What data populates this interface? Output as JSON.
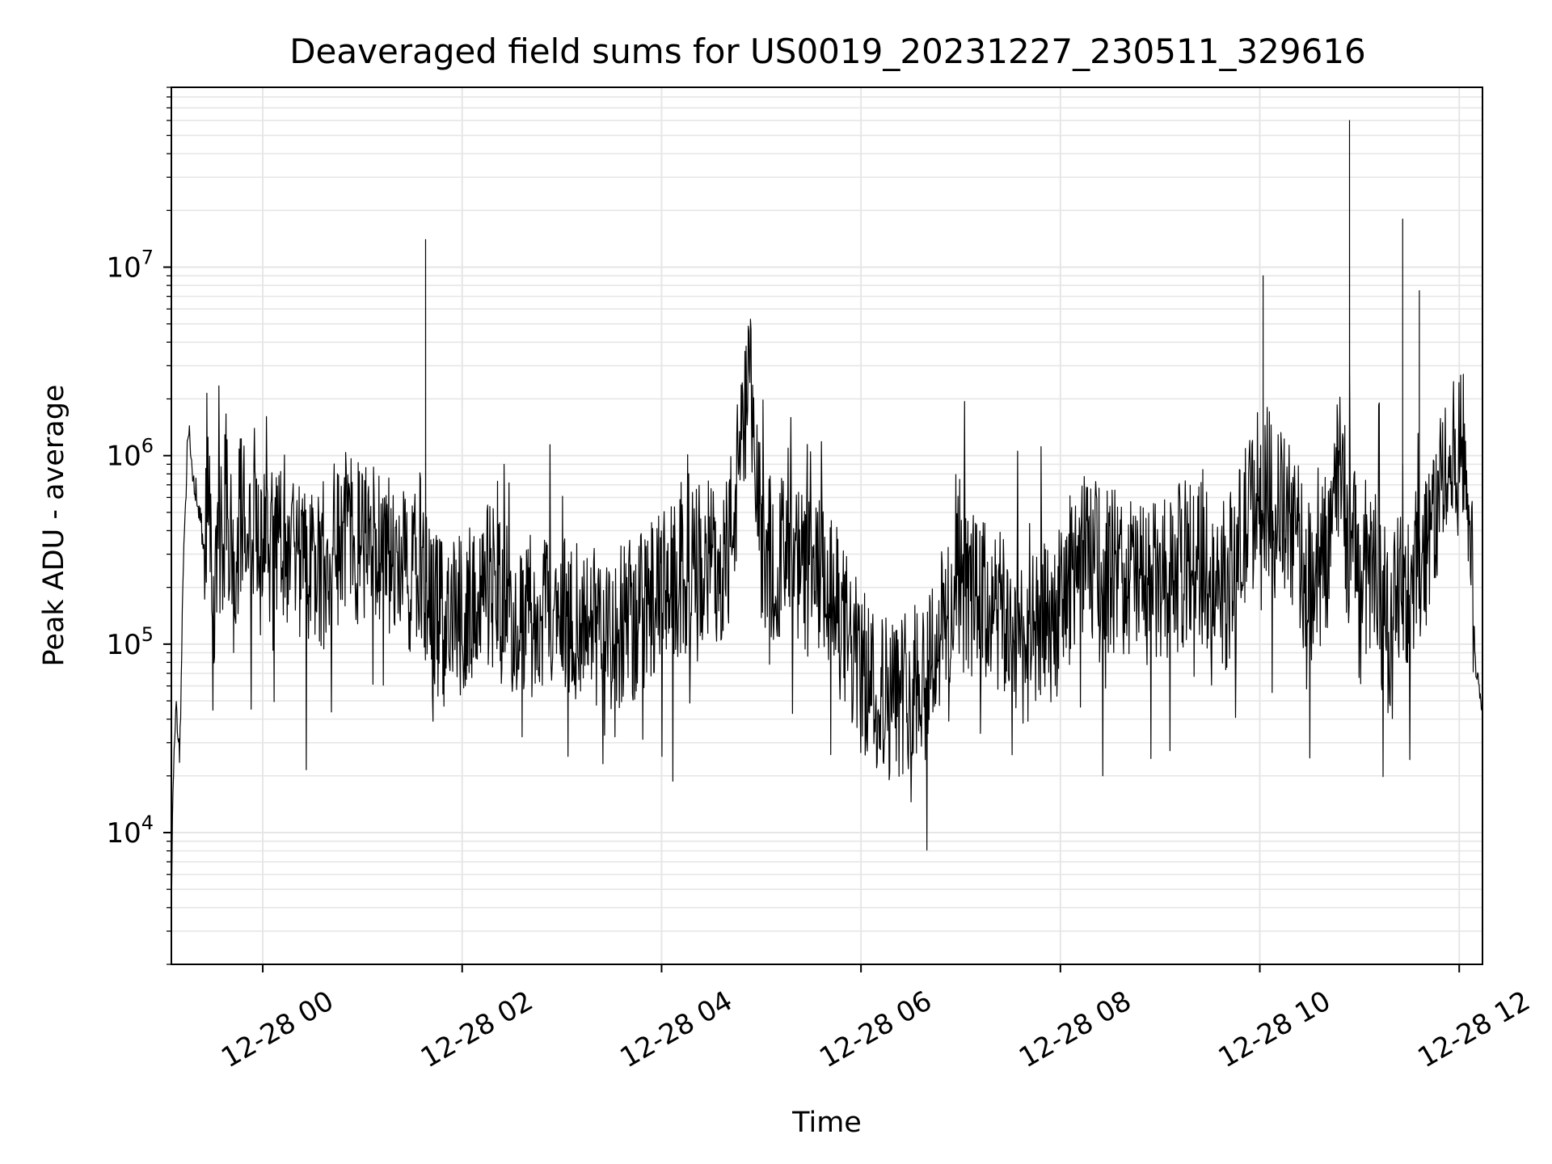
{
  "chart_data": {
    "type": "line",
    "title": "Deaveraged field sums for US0019_20231227_230511_329616",
    "xlabel": "Time",
    "ylabel": "Peak ADU - average",
    "yscale": "log",
    "grid": true,
    "xlim": [
      "2023-12-27 23:05",
      "2023-12-28 12:14"
    ],
    "ylim": [
      2000,
      90000000
    ],
    "x_ticks": [
      "12-28 00",
      "12-28 02",
      "12-28 04",
      "12-28 06",
      "12-28 08",
      "12-28 10",
      "12-28 12"
    ],
    "y_ticks": [
      {
        "base": "10",
        "exp": "4",
        "value": 10000
      },
      {
        "base": "10",
        "exp": "5",
        "value": 100000
      },
      {
        "base": "10",
        "exp": "6",
        "value": 1000000
      },
      {
        "base": "10",
        "exp": "7",
        "value": 10000000
      }
    ],
    "series": [
      {
        "color": "#000000",
        "x": [
          "2023-12-27 23:05",
          "2023-12-27 23:06",
          "2023-12-27 23:08",
          "2023-12-27 23:10",
          "2023-12-27 23:12",
          "2023-12-27 23:15",
          "2023-12-27 23:18",
          "2023-12-27 23:22",
          "2023-12-27 23:25",
          "2023-12-27 23:28",
          "2023-12-27 23:30",
          "2023-12-27 23:33",
          "2023-12-27 23:36",
          "2023-12-27 23:38",
          "2023-12-27 23:42",
          "2023-12-27 23:46",
          "2023-12-27 23:50",
          "2023-12-27 23:52",
          "2023-12-27 23:55",
          "2023-12-27 23:58",
          "2023-12-28 00:00",
          "2023-12-28 00:10",
          "2023-12-28 00:20",
          "2023-12-28 00:30",
          "2023-12-28 00:40",
          "2023-12-28 00:52",
          "2023-12-28 01:00",
          "2023-12-28 01:10",
          "2023-12-28 01:20",
          "2023-12-28 01:30",
          "2023-12-28 01:35",
          "2023-12-28 01:38",
          "2023-12-28 01:40",
          "2023-12-28 01:50",
          "2023-12-28 02:00",
          "2023-12-28 02:15",
          "2023-12-28 02:30",
          "2023-12-28 02:45",
          "2023-12-28 03:00",
          "2023-12-28 03:20",
          "2023-12-28 03:40",
          "2023-12-28 04:00",
          "2023-12-28 04:20",
          "2023-12-28 04:40",
          "2023-12-28 04:53",
          "2023-12-28 05:00",
          "2023-12-28 05:20",
          "2023-12-28 05:40",
          "2023-12-28 06:00",
          "2023-12-28 06:20",
          "2023-12-28 06:40",
          "2023-12-28 07:00",
          "2023-12-28 07:20",
          "2023-12-28 07:40",
          "2023-12-28 08:00",
          "2023-12-28 08:10",
          "2023-12-28 08:30",
          "2023-12-28 09:00",
          "2023-12-28 09:20",
          "2023-12-28 09:40",
          "2023-12-28 10:00",
          "2023-12-28 10:02",
          "2023-12-28 10:20",
          "2023-12-28 10:30",
          "2023-12-28 10:40",
          "2023-12-28 10:50",
          "2023-12-28 10:54",
          "2023-12-28 11:00",
          "2023-12-28 11:10",
          "2023-12-28 11:15",
          "2023-12-28 11:20",
          "2023-12-28 11:26",
          "2023-12-28 11:30",
          "2023-12-28 11:36",
          "2023-12-28 11:40",
          "2023-12-28 11:50",
          "2023-12-28 11:57",
          "2023-12-28 12:00",
          "2023-12-28 12:05",
          "2023-12-28 12:10",
          "2023-12-28 12:14"
        ],
        "y": [
          3300,
          20000,
          45000,
          25000,
          200000,
          1500000,
          800000,
          500000,
          300000,
          600000,
          80000,
          400000,
          300000,
          700000,
          200000,
          500000,
          400000,
          250000,
          500000,
          300000,
          350000,
          400000,
          300000,
          200000,
          300000,
          400000,
          300000,
          350000,
          300000,
          200000,
          300000,
          14000000,
          150000,
          120000,
          150000,
          200000,
          150000,
          130000,
          150000,
          120000,
          130000,
          180000,
          250000,
          300000,
          2200000,
          350000,
          250000,
          200000,
          70000,
          50000,
          80000,
          200000,
          150000,
          100000,
          150000,
          300000,
          250000,
          200000,
          300000,
          200000,
          700000,
          9000000,
          400000,
          200000,
          300000,
          1200000,
          60000000,
          150000,
          300000,
          100000,
          150000,
          18000000,
          200000,
          7500000,
          350000,
          700000,
          900000,
          1100000,
          800000,
          70000,
          45000
        ],
        "note_density": "dense noisy trace, ~2000 samples between the listed anchor points"
      }
    ]
  }
}
